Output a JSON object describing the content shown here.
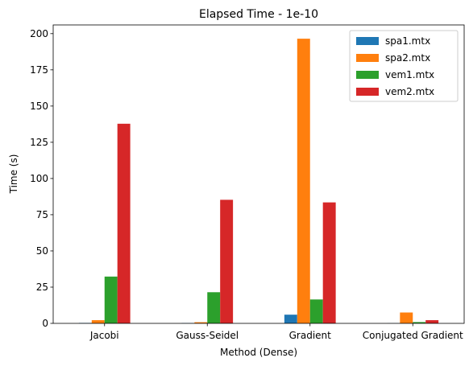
{
  "chart_data": {
    "type": "bar",
    "title": "Elapsed Time - 1e-10",
    "xlabel": "Method (Dense)",
    "ylabel": "Time (s)",
    "ylim": [
      0,
      206
    ],
    "yticks": [
      0,
      25,
      50,
      75,
      100,
      125,
      150,
      175,
      200
    ],
    "categories": [
      "Jacobi",
      "Gauss-Seidel",
      "Gradient",
      "Conjugated Gradient"
    ],
    "series": [
      {
        "name": "spa1.mtx",
        "color": "#1f77b4",
        "values": [
          0.3,
          0.2,
          6.0,
          0.1
        ]
      },
      {
        "name": "spa2.mtx",
        "color": "#ff7f0e",
        "values": [
          2.2,
          0.8,
          196.5,
          7.5
        ]
      },
      {
        "name": "vem1.mtx",
        "color": "#2ca02c",
        "values": [
          32.3,
          21.5,
          16.5,
          0.9
        ]
      },
      {
        "name": "vem2.mtx",
        "color": "#d62728",
        "values": [
          137.8,
          85.3,
          83.5,
          2.2
        ]
      }
    ],
    "legend_position": "top-right",
    "grid": false
  }
}
